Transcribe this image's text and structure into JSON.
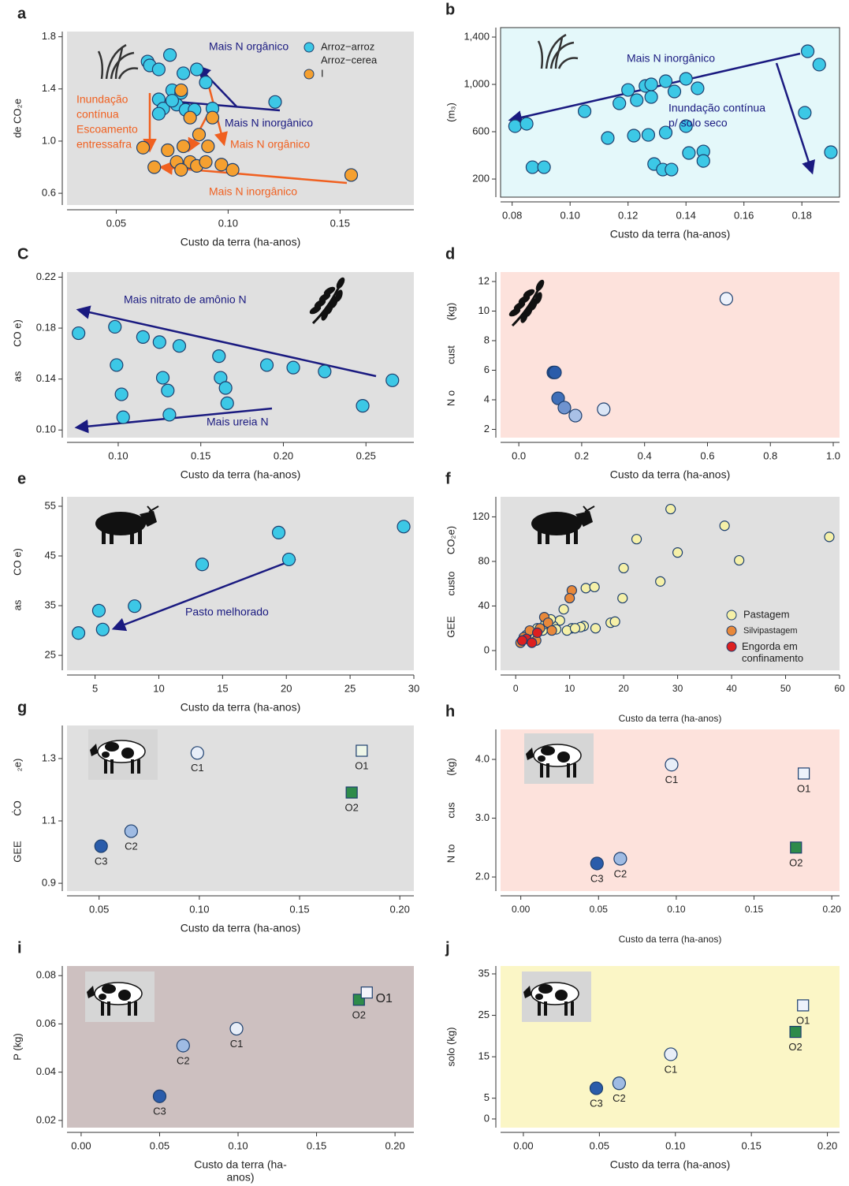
{
  "chart_data": [
    {
      "type": "scatter",
      "label": "a",
      "xlabel": "Custo da terra (ha-anos)",
      "ylabel": [
        "de CO₂e"
      ],
      "xlim": [
        0.028,
        0.183
      ],
      "ylim": [
        0.51,
        1.84
      ],
      "xticks": [
        0.05,
        {
          "value": 0.1,
          "label": "0.10"
        },
        0.15
      ],
      "yticks": [
        0.6,
        {
          "value": 1,
          "label": "1.0"
        },
        1.4,
        1.8
      ],
      "background": "#e0e0e0",
      "series": [
        {
          "name": "Arroz−arroz",
          "color": "#3cc8e6",
          "x": [
            0.064,
            0.065,
            0.069,
            0.074,
            0.08,
            0.086,
            0.09,
            0.075,
            0.069,
            0.071,
            0.077,
            0.081,
            0.085,
            0.093,
            0.069,
            0.121,
            0.079,
            0.075
          ],
          "y": [
            1.61,
            1.58,
            1.55,
            1.66,
            1.52,
            1.55,
            1.45,
            1.39,
            1.32,
            1.25,
            1.28,
            1.24,
            1.24,
            1.25,
            1.21,
            1.3,
            1.37,
            1.31
          ]
        },
        {
          "name": "Arroz−cerea",
          "color": null,
          "x": [],
          "y": []
        },
        {
          "name": "I",
          "color": "#f5a030",
          "x": [
            0.079,
            0.083,
            0.093,
            0.08,
            0.073,
            0.062,
            0.087,
            0.091,
            0.067,
            0.077,
            0.083,
            0.086,
            0.09,
            0.097,
            0.102,
            0.079,
            0.155
          ],
          "y": [
            1.39,
            1.18,
            1.18,
            0.96,
            0.93,
            0.95,
            1.05,
            0.96,
            0.8,
            0.84,
            0.84,
            0.81,
            0.84,
            0.82,
            0.78,
            0.78,
            0.74
          ]
        }
      ],
      "annotations": [
        {
          "text": "Mais N orgânico",
          "color": "#1a1a80"
        },
        {
          "text": "Inundação",
          "color": "#f06020"
        },
        {
          "text": "contínua",
          "color": "#f06020"
        },
        {
          "text": "Escoamento",
          "color": "#f06020"
        },
        {
          "text": "entressafra",
          "color": "#f06020"
        },
        {
          "text": "Mais N inorgânico",
          "color": "#1a1a80"
        },
        {
          "text": "Mais N orgânico",
          "color": "#f06020"
        },
        {
          "text": "Mais N inorgânico",
          "color": "#f06020"
        }
      ]
    },
    {
      "type": "scatter",
      "label": "b",
      "xlabel": "Custo da terra (ha-anos)",
      "ylabel": [
        "(m₃)"
      ],
      "xlim": [
        0.076,
        0.193
      ],
      "ylim": [
        47,
        1480
      ],
      "xticks": [
        0.08,
        {
          "value": 0.1,
          "label": "0.10"
        },
        0.12,
        0.14,
        0.16,
        0.18
      ],
      "yticks": [
        200,
        600,
        {
          "value": 1000,
          "label": "1,000"
        },
        {
          "value": 1400,
          "label": "1,400"
        }
      ],
      "background": "#e4f8fa",
      "frame": true,
      "series": [
        {
          "color": "#3cc8e6",
          "x": [
            0.081,
            0.085,
            0.087,
            0.091,
            0.105,
            0.113,
            0.117,
            0.12,
            0.123,
            0.122,
            0.126,
            0.127,
            0.128,
            0.128,
            0.133,
            0.133,
            0.136,
            0.14,
            0.14,
            0.129,
            0.132,
            0.135,
            0.141,
            0.146,
            0.146,
            0.144,
            0.182,
            0.186,
            0.181,
            0.19
          ],
          "y": [
            647,
            667,
            300,
            300,
            773,
            547,
            840,
            953,
            867,
            567,
            987,
            573,
            1000,
            893,
            593,
            1027,
            940,
            1047,
            647,
            327,
            280,
            280,
            420,
            433,
            353,
            967,
            1280,
            1167,
            760,
            427
          ]
        }
      ],
      "annotations": [
        {
          "text": "Mais N inorgânico",
          "color": "#1a1a80"
        },
        {
          "text": "Inundação contínua",
          "color": "#1a1a80"
        },
        {
          "text": "p/ solo seco",
          "color": "#1a1a80"
        }
      ]
    },
    {
      "type": "scatter",
      "label": "C",
      "xlabel": "Custo da terra (ha-anos)",
      "ylabel": [
        "as",
        "CO e)"
      ],
      "xlim": [
        0.069,
        0.279
      ],
      "ylim": [
        0.094,
        0.224
      ],
      "xticks": [
        {
          "value": 0.1,
          "label": "0.10"
        },
        0.15,
        {
          "value": 0.2,
          "label": "0.20"
        },
        0.25
      ],
      "yticks": [
        {
          "value": 0.1,
          "label": "0.10"
        },
        0.14,
        0.18,
        0.22
      ],
      "background": "#e0e0e0",
      "series": [
        {
          "color": "#3cc8e6",
          "x": [
            0.076,
            0.098,
            0.099,
            0.102,
            0.103,
            0.115,
            0.125,
            0.137,
            0.127,
            0.13,
            0.131,
            0.161,
            0.162,
            0.165,
            0.166,
            0.19,
            0.206,
            0.225,
            0.248,
            0.266
          ],
          "y": [
            0.176,
            0.181,
            0.151,
            0.128,
            0.11,
            0.173,
            0.169,
            0.166,
            0.141,
            0.131,
            0.112,
            0.158,
            0.141,
            0.133,
            0.121,
            0.151,
            0.149,
            0.146,
            0.119,
            0.139
          ]
        }
      ],
      "annotations": [
        {
          "text": "Mais nitrato de amônio N",
          "color": "#1a1a80"
        },
        {
          "text": "Mais ureia N",
          "color": "#1a1a80"
        }
      ]
    },
    {
      "type": "scatter",
      "label": "d",
      "xlabel": "Custo da terra (ha-anos)",
      "ylabel": [
        "N o",
        "cust",
        "(kg)"
      ],
      "xlim": [
        -0.058,
        1.02
      ],
      "ylim": [
        1.44,
        12.64
      ],
      "xticks": [
        {
          "value": 0,
          "label": "0.0"
        },
        0.2,
        0.4,
        0.6,
        0.8,
        {
          "value": 1,
          "label": "1.0"
        }
      ],
      "yticks": [
        2,
        4,
        6,
        8,
        10,
        12
      ],
      "background": "#fde2dc",
      "series": [
        {
          "colors": [
            "#1f4e9c",
            "#2a5caa",
            "#3f6fb8",
            "#6f93cf",
            "#a9c0e6",
            "#dbe6f6",
            "#eef2fb"
          ],
          "x": [
            0.11,
            0.115,
            0.125,
            0.145,
            0.18,
            0.27,
            0.66
          ],
          "y": [
            5.85,
            5.85,
            4.1,
            3.47,
            2.93,
            3.36,
            10.83
          ]
        }
      ]
    },
    {
      "type": "scatter",
      "label": "e",
      "xlabel": "Custo da terra (ha-anos)",
      "ylabel": [
        "as",
        "CO e)"
      ],
      "xlim": [
        2.8,
        30
      ],
      "ylim": [
        22,
        56.9
      ],
      "xticks": [
        5,
        10,
        15,
        20,
        25,
        30
      ],
      "yticks": [
        25,
        35,
        45,
        55
      ],
      "background": "#e0e0e0",
      "series": [
        {
          "color": "#3cc8e6",
          "x": [
            3.7,
            5.3,
            5.6,
            8.1,
            13.4,
            19.4,
            20.2,
            29.2
          ],
          "y": [
            29.5,
            34,
            30.2,
            34.9,
            43.3,
            49.7,
            44.3,
            50.9
          ]
        }
      ],
      "annotations": [
        {
          "text": "Pasto melhorado",
          "color": "#1a1a80"
        }
      ]
    },
    {
      "type": "scatter",
      "label": "f",
      "xlabel": "Custo da terra (ha-anos)",
      "ylabel": [
        "GEE",
        "custo",
        "CO₂e)"
      ],
      "xlim": [
        -2.8,
        60
      ],
      "ylim": [
        -17.7,
        138
      ],
      "xticks": [
        0,
        10,
        20,
        30,
        40,
        50,
        60
      ],
      "yticks": [
        0,
        40,
        80,
        120
      ],
      "background": "#e0e0e0",
      "series": [
        {
          "name": "Pastagem",
          "color": "#f5f0a8",
          "x": [
            28.7,
            38.7,
            58.1,
            22.4,
            30,
            20,
            41.4,
            26.8,
            19.8,
            8.9,
            13,
            14.6,
            12.6,
            14.8,
            12,
            17.6,
            18.4,
            10.4,
            8.2,
            7,
            6,
            5,
            4,
            3,
            2,
            6.5,
            7.5,
            5.5,
            9.5,
            11
          ],
          "y": [
            127,
            112,
            102,
            100,
            88,
            74,
            81,
            62,
            47,
            37,
            56,
            57,
            22,
            20,
            21,
            25,
            26,
            20,
            27,
            22,
            25,
            18,
            20,
            15,
            14,
            28,
            19,
            24,
            18,
            20
          ]
        },
        {
          "name": "Silvipastagem",
          "color": "#e8883a",
          "x": [
            10.4,
            10,
            1.5,
            2.6,
            3.8,
            5.3,
            6,
            0.9,
            6.7,
            4.5
          ],
          "y": [
            54,
            47,
            12,
            18,
            9,
            30,
            25,
            7,
            18,
            20
          ]
        },
        {
          "name": "Engorda em confinamento",
          "color": "#dd2020",
          "x": [
            2,
            4,
            3,
            1.2
          ],
          "y": [
            10.5,
            16,
            7,
            9
          ]
        }
      ]
    },
    {
      "type": "scatter",
      "label": "g",
      "xlabel": "Custo da terra (ha-anos)",
      "ylabel": [
        "GEE",
        "ĊO",
        "₂e)"
      ],
      "xlim": [
        0.034,
        0.207
      ],
      "ylim": [
        0.875,
        1.406
      ],
      "xticks": [
        0.05,
        {
          "value": 0.1,
          "label": "0.10"
        },
        0.15,
        {
          "value": 0.2,
          "label": "0.20"
        }
      ],
      "yticks": [
        0.9,
        1.1,
        1.3
      ],
      "background": "#e0e0e0",
      "series": [
        {
          "labels": [
            "C3",
            "C2",
            "C1",
            "O2",
            "O1"
          ],
          "colors": [
            "#2a5caa",
            "#9fbbe3",
            "#e8eef8",
            "#2e8b4a",
            "#eef6e8"
          ],
          "markers": [
            "circle",
            "circle",
            "circle",
            "square",
            "square"
          ],
          "x": [
            0.051,
            0.066,
            0.099,
            0.176,
            0.181
          ],
          "y": [
            1.019,
            1.067,
            1.318,
            1.191,
            1.325
          ]
        }
      ]
    },
    {
      "type": "scatter",
      "label": "h",
      "xlabel": "Custo da terra (ha-anos)",
      "ylabel": [
        "N to",
        "cus",
        "(kg)"
      ],
      "xlim": [
        -0.013,
        0.205
      ],
      "ylim": [
        1.76,
        4.51
      ],
      "xticks": [
        {
          "value": 0,
          "label": "0.00"
        },
        0.05,
        {
          "value": 0.1,
          "label": "0.10"
        },
        0.15,
        {
          "value": 0.2,
          "label": "0.20"
        }
      ],
      "yticks": [
        {
          "value": 2,
          "label": "2.0"
        },
        {
          "value": 3,
          "label": "3.0"
        },
        {
          "value": 4,
          "label": "4.0"
        }
      ],
      "background": "#fde2dc",
      "series": [
        {
          "labels": [
            "C3",
            "C2",
            "C1",
            "O1",
            "O2"
          ],
          "colors": [
            "#2a5caa",
            "#9fbbe3",
            "#e8eef8",
            "#eef2fb",
            "#2e8b4a"
          ],
          "markers": [
            "circle",
            "circle",
            "circle",
            "square",
            "square"
          ],
          "x": [
            0.049,
            0.064,
            0.097,
            0.182,
            0.177
          ],
          "y": [
            2.23,
            2.31,
            3.91,
            3.76,
            2.5
          ]
        }
      ]
    },
    {
      "type": "scatter",
      "label": "i",
      "xlabel": [
        "Custo da terra (ha-",
        "anos)"
      ],
      "ylabel": [
        "P (kg)"
      ],
      "xlim": [
        -0.009,
        0.212
      ],
      "ylim": [
        0.017,
        0.084
      ],
      "xticks": [
        {
          "value": 0,
          "label": "0.00"
        },
        0.05,
        {
          "value": 0.1,
          "label": "0.10"
        },
        0.15,
        {
          "value": 0.2,
          "label": "0.20"
        }
      ],
      "yticks": [
        0.02,
        0.04,
        0.06,
        0.08
      ],
      "background": "#cdc0c0",
      "series": [
        {
          "labels": [
            "C3",
            "C2",
            "C1",
            "O2",
            "O1"
          ],
          "colors": [
            "#2a5caa",
            "#9fbbe3",
            "#e8eef8",
            "#2e8b4a",
            "#f4f4fb"
          ],
          "markers": [
            "circle",
            "circle",
            "circle",
            "square",
            "square"
          ],
          "x": [
            0.05,
            0.065,
            0.099,
            0.177,
            0.182
          ],
          "y": [
            0.03,
            0.051,
            0.058,
            0.07,
            0.073
          ]
        }
      ]
    },
    {
      "type": "scatter",
      "label": "j",
      "xlabel": "Custo da terra (ha-anos)",
      "ylabel": [
        "solo (kg)"
      ],
      "xlim": [
        -0.015,
        0.208
      ],
      "ylim": [
        -2.1,
        36.9
      ],
      "xticks": [
        {
          "value": 0,
          "label": "0.00"
        },
        0.05,
        {
          "value": 0.1,
          "label": "0.10"
        },
        0.15,
        {
          "value": 0.2,
          "label": "0.20"
        }
      ],
      "yticks": [
        0,
        5,
        15,
        25,
        35
      ],
      "background": "#fbf6c6",
      "series": [
        {
          "labels": [
            "C3",
            "C2",
            "C1",
            "O2",
            "O1"
          ],
          "colors": [
            "#2a5caa",
            "#9fbbe3",
            "#e8eef8",
            "#2e8b4a",
            "#eef2fb"
          ],
          "markers": [
            "circle",
            "circle",
            "circle",
            "square",
            "square"
          ],
          "x": [
            0.048,
            0.063,
            0.097,
            0.179,
            0.184
          ],
          "y": [
            7.4,
            8.6,
            15.6,
            21,
            27.4
          ]
        }
      ]
    }
  ]
}
